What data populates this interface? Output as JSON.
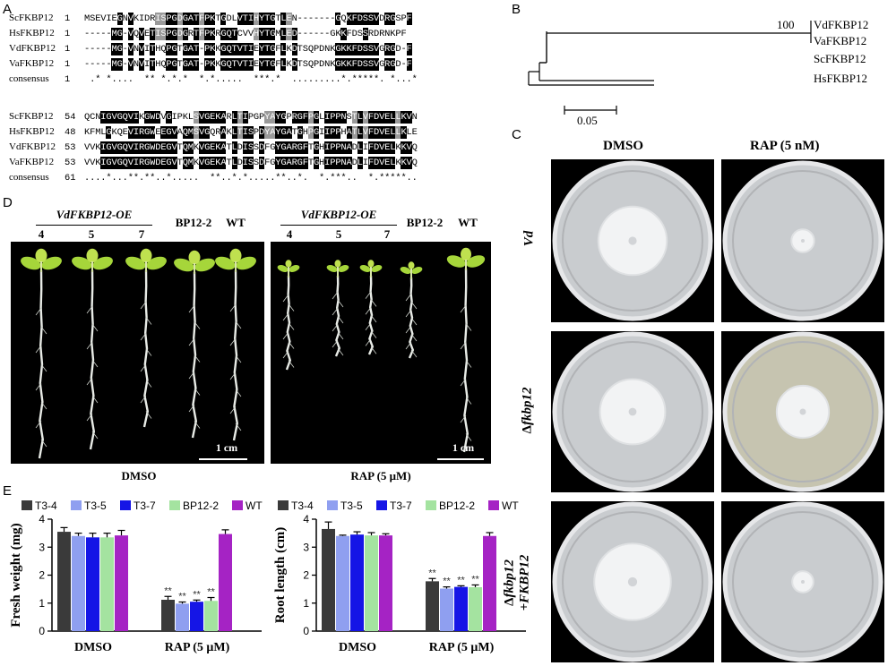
{
  "panels": {
    "A": "A",
    "B": "B",
    "C": "C",
    "D": "D",
    "E": "E"
  },
  "alignment": {
    "block1": {
      "rows": [
        {
          "name": "ScFKBP12",
          "num": "1",
          "seq": "MSEVIEGNVKIDRISPGDGATFPKTGDLVTIHYTGTLEN-------GQKFDSSVDRGSPF"
        },
        {
          "name": "HsFKBP12",
          "num": "1",
          "seq": "-----MG-VQVETISPGDGRTFPKRGQTCVVHYTGMLED------GKKFDSSRDRNKPF"
        },
        {
          "name": "VdFKBP12",
          "num": "1",
          "seq": "-----MG-VNVITHQPGTGAT-PKKGQTVTIEYTGFLKDTSQPDNKGKKFDSSVGRGD-F"
        },
        {
          "name": "VaFKBP12",
          "num": "1",
          "seq": "-----MG-VNVITHQPGTGAT-PKKGQTVTIEYTGFLKDTSQPDNKGKKFDSSVGRGD-F"
        }
      ],
      "consensus_label": "consensus",
      "consensus_num": "1",
      "consensus": " .* *....  ** *.*.*  *.*.....  ***.*  .........*.*****. *...*"
    },
    "block2": {
      "rows": [
        {
          "name": "ScFKBP12",
          "num": "54",
          "seq": "QCNIGVGQVIKGWDVGIPKLSVGEKARLTIPGPYAYGPRGFPGLIPPNSTLVFDVELLKVN"
        },
        {
          "name": "HsFKBP12",
          "num": "48",
          "seq": "KFMLGKQEVIRGWEEGVAQMSVGQRAKLTISPDYAYGATGHPGIIPPHATLVFDVELLKLE"
        },
        {
          "name": "VdFKBP12",
          "num": "53",
          "seq": "VVKIGVGQVIRGWDEGVTQMKVGEKATLDISSDFGYGARGFTGHIPPNADLIFDVELKKVQ"
        },
        {
          "name": "VaFKBP12",
          "num": "53",
          "seq": "VVKIGVGQVIRGWDEGVTQMKVGEKATLDISSDFGYGARGFTGHIPPNADLIFDVELKKVQ"
        }
      ],
      "consensus_label": "consensus",
      "consensus_num": "61",
      "consensus": "....*...**.**..*.....  **..*.*.....**..*.  *.***..  *.*****.."
    }
  },
  "tree": {
    "bootstrap": "100",
    "taxa": [
      "VdFKBP12",
      "VaFKBP12",
      "ScFKBP12",
      "HsFKBP12"
    ],
    "scale_label": "0.05"
  },
  "panelC": {
    "columns": [
      "DMSO",
      "RAP (5 nM)"
    ],
    "rows": [
      {
        "label": "Vd",
        "plain": ""
      },
      {
        "label": "fkbp12",
        "plain": "Δ"
      },
      {
        "label": "fkbp12",
        "plain": "Δ",
        "label2": "+FKBP12"
      }
    ],
    "colony_size_fraction": [
      [
        0.42,
        0.14
      ],
      [
        0.4,
        0.32
      ],
      [
        0.47,
        0.13
      ]
    ]
  },
  "panelD": {
    "left": {
      "group": "VdFKBP12-OE",
      "nums": [
        "4",
        "5",
        "7"
      ],
      "others": [
        "BP12-2",
        "WT"
      ],
      "scale": "1 cm",
      "caption": "DMSO"
    },
    "right": {
      "group": "VdFKBP12-OE",
      "nums": [
        "4",
        "5",
        "7"
      ],
      "others": [
        "BP12-2",
        "WT"
      ],
      "scale": "1 cm",
      "caption": "RAP (5 μM)"
    }
  },
  "legend": [
    {
      "name": "T3-4",
      "color": "#3a3a3a"
    },
    {
      "name": "T3-5",
      "color": "#8f9ff0"
    },
    {
      "name": "T3-7",
      "color": "#1515e6"
    },
    {
      "name": "BP12-2",
      "color": "#a4e3a0"
    },
    {
      "name": "WT",
      "color": "#a523c4"
    }
  ],
  "chart_data": [
    {
      "type": "bar",
      "ylabel": "Fresh weight (mg)",
      "categories": [
        "DMSO",
        "RAP (5 μM)"
      ],
      "ylim": [
        0,
        4
      ],
      "yticks": [
        "0",
        "1",
        "2",
        "3",
        "4"
      ],
      "series": [
        {
          "name": "T3-4",
          "values": [
            3.55,
            1.12
          ],
          "err": [
            0.15,
            0.12
          ]
        },
        {
          "name": "T3-5",
          "values": [
            3.4,
            0.98
          ],
          "err": [
            0.1,
            0.06
          ]
        },
        {
          "name": "T3-7",
          "values": [
            3.35,
            1.05
          ],
          "err": [
            0.15,
            0.06
          ]
        },
        {
          "name": "BP12-2",
          "values": [
            3.35,
            1.08
          ],
          "err": [
            0.15,
            0.12
          ]
        },
        {
          "name": "WT",
          "values": [
            3.42,
            3.47
          ],
          "err": [
            0.18,
            0.15
          ]
        }
      ],
      "sig": [
        "**",
        "**",
        "**",
        "**",
        ""
      ]
    },
    {
      "type": "bar",
      "ylabel": "Root length (cm)",
      "categories": [
        "DMSO",
        "RAP (5 μM)"
      ],
      "ylim": [
        0,
        4
      ],
      "yticks": [
        "0",
        "1",
        "2",
        "3",
        "4"
      ],
      "series": [
        {
          "name": "T3-4",
          "values": [
            3.65,
            1.78
          ],
          "err": [
            0.25,
            0.1
          ]
        },
        {
          "name": "T3-5",
          "values": [
            3.4,
            1.52
          ],
          "err": [
            0.03,
            0.06
          ]
        },
        {
          "name": "T3-7",
          "values": [
            3.45,
            1.58
          ],
          "err": [
            0.1,
            0.04
          ]
        },
        {
          "name": "BP12-2",
          "values": [
            3.42,
            1.57
          ],
          "err": [
            0.1,
            0.08
          ]
        },
        {
          "name": "WT",
          "values": [
            3.42,
            3.4
          ],
          "err": [
            0.06,
            0.12
          ]
        }
      ],
      "sig": [
        "**",
        "**",
        "**",
        "**",
        ""
      ]
    }
  ]
}
